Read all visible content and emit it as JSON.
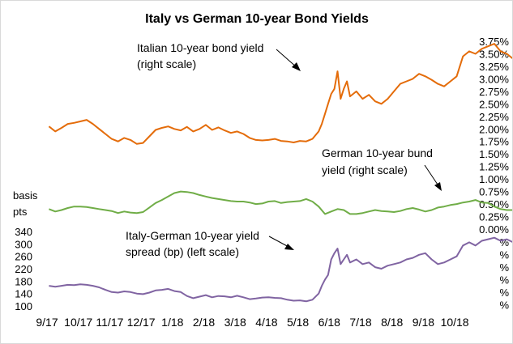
{
  "chart_data": {
    "type": "line",
    "title": "Italy vs German 10-year Bond Yields",
    "left_axis": {
      "label_lines": [
        "basis",
        "pts"
      ],
      "ticks": [
        "100",
        "140",
        "180",
        "220",
        "260",
        "300",
        "340"
      ],
      "range": [
        100,
        340
      ]
    },
    "right_axis": {
      "ticks": [
        "0.00%",
        "0.25%",
        "0.50%",
        "0.75%",
        "1.00%",
        "1.25%",
        "1.50%",
        "1.75%",
        "2.00%",
        "2.25%",
        "2.50%",
        "2.75%",
        "3.00%",
        "3.25%",
        "3.50%",
        "3.75%"
      ],
      "range": [
        0,
        3.75
      ],
      "lower_ticks": [
        "%",
        "%",
        "%",
        "%",
        "%",
        "%"
      ]
    },
    "x_categories": [
      "9/17",
      "10/17",
      "11/17",
      "12/17",
      "1/18",
      "2/18",
      "3/18",
      "4/18",
      "5/18",
      "6/18",
      "7/18",
      "8/18",
      "9/18",
      "10/18"
    ],
    "annotations": [
      {
        "id": "italy",
        "lines": [
          "Italian 10-year bond  yield",
          "(right scale)"
        ]
      },
      {
        "id": "german",
        "lines": [
          "German 10-year bund",
          "yield (right scale)"
        ]
      },
      {
        "id": "spread",
        "lines": [
          "Italy-German 10-year yield",
          "spread (bp) (left scale)"
        ]
      }
    ],
    "series": [
      {
        "name": "Italian 10-year bond  yield",
        "axis": "right",
        "color": "#e46c0a",
        "x": [
          0,
          0.2,
          0.4,
          0.6,
          0.8,
          1.0,
          1.2,
          1.4,
          1.6,
          1.8,
          2.0,
          2.2,
          2.4,
          2.6,
          2.8,
          3.0,
          3.2,
          3.4,
          3.6,
          3.8,
          4.0,
          4.2,
          4.4,
          4.6,
          4.8,
          5.0,
          5.2,
          5.4,
          5.6,
          5.8,
          6.0,
          6.2,
          6.4,
          6.6,
          6.8,
          7.0,
          7.2,
          7.4,
          7.6,
          7.8,
          8.0,
          8.2,
          8.4,
          8.6,
          8.7,
          8.8,
          8.9,
          9.0,
          9.1,
          9.2,
          9.3,
          9.4,
          9.5,
          9.6,
          9.8,
          10.0,
          10.2,
          10.4,
          10.6,
          10.8,
          11.0,
          11.2,
          11.4,
          11.6,
          11.8,
          12.0,
          12.2,
          12.4,
          12.6,
          12.8,
          13.0,
          13.2,
          13.4,
          13.6,
          13.8,
          14.0,
          14.2,
          14.4,
          14.6,
          14.8
        ],
        "values": [
          2.05,
          1.95,
          2.02,
          2.1,
          2.12,
          2.15,
          2.18,
          2.1,
          2.0,
          1.9,
          1.8,
          1.75,
          1.82,
          1.78,
          1.7,
          1.72,
          1.85,
          1.98,
          2.02,
          2.05,
          2.0,
          1.97,
          2.04,
          1.95,
          2.0,
          2.08,
          1.98,
          2.03,
          1.97,
          1.92,
          1.95,
          1.9,
          1.82,
          1.78,
          1.77,
          1.78,
          1.8,
          1.76,
          1.75,
          1.73,
          1.76,
          1.75,
          1.8,
          1.95,
          2.1,
          2.3,
          2.5,
          2.7,
          2.8,
          3.15,
          2.6,
          2.8,
          2.95,
          2.65,
          2.75,
          2.6,
          2.68,
          2.55,
          2.5,
          2.6,
          2.75,
          2.9,
          2.95,
          3.0,
          3.1,
          3.05,
          2.98,
          2.9,
          2.85,
          2.95,
          3.05,
          3.45,
          3.55,
          3.5,
          3.6,
          3.65,
          3.7,
          3.55,
          3.5,
          3.4
        ]
      },
      {
        "name": "German 10-year bund yield",
        "axis": "right",
        "color": "#70ad47",
        "x": [
          0,
          0.2,
          0.4,
          0.6,
          0.8,
          1.0,
          1.2,
          1.4,
          1.6,
          1.8,
          2.0,
          2.2,
          2.4,
          2.6,
          2.8,
          3.0,
          3.2,
          3.4,
          3.6,
          3.8,
          4.0,
          4.2,
          4.4,
          4.6,
          4.8,
          5.0,
          5.2,
          5.4,
          5.6,
          5.8,
          6.0,
          6.2,
          6.4,
          6.6,
          6.8,
          7.0,
          7.2,
          7.4,
          7.6,
          7.8,
          8.0,
          8.2,
          8.4,
          8.6,
          8.8,
          9.0,
          9.2,
          9.4,
          9.6,
          9.8,
          10.0,
          10.2,
          10.4,
          10.6,
          10.8,
          11.0,
          11.2,
          11.4,
          11.6,
          11.8,
          12.0,
          12.2,
          12.4,
          12.6,
          12.8,
          13.0,
          13.2,
          13.4,
          13.6,
          13.8,
          14.0,
          14.2,
          14.4,
          14.6,
          14.8
        ],
        "values": [
          0.4,
          0.35,
          0.38,
          0.42,
          0.45,
          0.45,
          0.44,
          0.42,
          0.4,
          0.38,
          0.36,
          0.32,
          0.35,
          0.33,
          0.32,
          0.34,
          0.43,
          0.52,
          0.58,
          0.65,
          0.72,
          0.75,
          0.74,
          0.72,
          0.68,
          0.65,
          0.62,
          0.6,
          0.58,
          0.56,
          0.55,
          0.55,
          0.53,
          0.5,
          0.51,
          0.55,
          0.56,
          0.52,
          0.54,
          0.55,
          0.56,
          0.6,
          0.55,
          0.45,
          0.3,
          0.35,
          0.4,
          0.38,
          0.3,
          0.3,
          0.32,
          0.35,
          0.38,
          0.36,
          0.35,
          0.34,
          0.36,
          0.4,
          0.42,
          0.39,
          0.35,
          0.38,
          0.43,
          0.45,
          0.48,
          0.5,
          0.53,
          0.55,
          0.58,
          0.53,
          0.52,
          0.45,
          0.4,
          0.38,
          0.38
        ]
      },
      {
        "name": "Italy-German 10-year yield spread (bp)",
        "axis": "left",
        "color": "#8064a2",
        "x": [
          0,
          0.2,
          0.4,
          0.6,
          0.8,
          1.0,
          1.2,
          1.4,
          1.6,
          1.8,
          2.0,
          2.2,
          2.4,
          2.6,
          2.8,
          3.0,
          3.2,
          3.4,
          3.6,
          3.8,
          4.0,
          4.2,
          4.4,
          4.6,
          4.8,
          5.0,
          5.2,
          5.4,
          5.6,
          5.8,
          6.0,
          6.2,
          6.4,
          6.6,
          6.8,
          7.0,
          7.2,
          7.4,
          7.6,
          7.8,
          8.0,
          8.2,
          8.4,
          8.6,
          8.7,
          8.8,
          8.9,
          9.0,
          9.1,
          9.2,
          9.3,
          9.4,
          9.5,
          9.6,
          9.8,
          10.0,
          10.2,
          10.4,
          10.6,
          10.8,
          11.0,
          11.2,
          11.4,
          11.6,
          11.8,
          12.0,
          12.2,
          12.4,
          12.6,
          12.8,
          13.0,
          13.2,
          13.4,
          13.6,
          13.8,
          14.0,
          14.2,
          14.4,
          14.6,
          14.8
        ],
        "values": [
          165,
          162,
          165,
          168,
          167,
          170,
          168,
          165,
          160,
          152,
          145,
          143,
          147,
          145,
          140,
          138,
          143,
          150,
          152,
          155,
          148,
          145,
          132,
          125,
          130,
          135,
          128,
          132,
          131,
          128,
          133,
          128,
          122,
          124,
          127,
          128,
          126,
          125,
          120,
          117,
          118,
          115,
          120,
          140,
          165,
          185,
          200,
          250,
          270,
          285,
          235,
          250,
          265,
          240,
          250,
          235,
          240,
          225,
          220,
          230,
          235,
          240,
          250,
          255,
          265,
          270,
          250,
          235,
          240,
          250,
          260,
          295,
          305,
          295,
          310,
          315,
          320,
          310,
          315,
          305
        ]
      }
    ]
  }
}
